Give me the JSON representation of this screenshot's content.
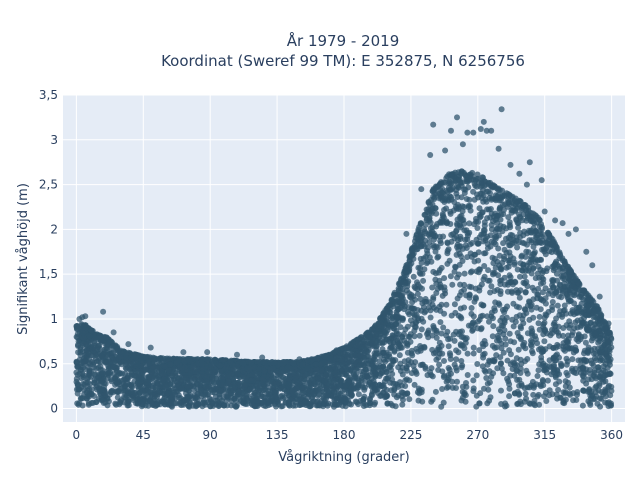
{
  "chart_data": {
    "type": "scatter",
    "title": "År 1979 - 2019",
    "subtitle": "Koordinat (Sweref 99 TM): E 352875, N 6256756",
    "xlabel": "Vågriktning (grader)",
    "ylabel": "Signifikant våghöjd (m)",
    "xlim": [
      -9,
      369
    ],
    "ylim": [
      -0.15,
      3.5
    ],
    "x_ticks": [
      0,
      45,
      90,
      135,
      180,
      225,
      270,
      315,
      360
    ],
    "x_tick_labels": [
      "0",
      "45",
      "90",
      "135",
      "180",
      "225",
      "270",
      "315",
      "360"
    ],
    "y_ticks": [
      0,
      0.5,
      1,
      1.5,
      2,
      2.5,
      3,
      3.5
    ],
    "y_tick_labels": [
      "0",
      "0,5",
      "1",
      "1,5",
      "2",
      "2,5",
      "3",
      "3,5"
    ],
    "grid": true,
    "plot_background": "#e5ecf6",
    "grid_color": "#ffffff",
    "marker_color": "#30566e",
    "marker_opacity": 0.75,
    "point_cloud": {
      "direction_range": [
        0,
        360
      ],
      "height_min": 0.02,
      "upper_envelope": [
        [
          0,
          0.92
        ],
        [
          5,
          0.95
        ],
        [
          10,
          0.88
        ],
        [
          15,
          0.82
        ],
        [
          20,
          0.8
        ],
        [
          30,
          0.65
        ],
        [
          45,
          0.58
        ],
        [
          60,
          0.56
        ],
        [
          90,
          0.55
        ],
        [
          120,
          0.52
        ],
        [
          150,
          0.52
        ],
        [
          170,
          0.6
        ],
        [
          180,
          0.68
        ],
        [
          190,
          0.78
        ],
        [
          200,
          0.9
        ],
        [
          210,
          1.15
        ],
        [
          220,
          1.5
        ],
        [
          230,
          2.0
        ],
        [
          240,
          2.45
        ],
        [
          250,
          2.62
        ],
        [
          260,
          2.65
        ],
        [
          270,
          2.62
        ],
        [
          280,
          2.5
        ],
        [
          290,
          2.4
        ],
        [
          300,
          2.3
        ],
        [
          310,
          2.15
        ],
        [
          320,
          1.9
        ],
        [
          330,
          1.6
        ],
        [
          340,
          1.35
        ],
        [
          350,
          1.15
        ],
        [
          355,
          0.98
        ],
        [
          360,
          0.82
        ]
      ]
    },
    "outliers": [
      {
        "x": 2,
        "y": 1.0
      },
      {
        "x": 4,
        "y": 1.02
      },
      {
        "x": 6,
        "y": 1.03
      },
      {
        "x": 18,
        "y": 1.08
      },
      {
        "x": 25,
        "y": 0.85
      },
      {
        "x": 35,
        "y": 0.72
      },
      {
        "x": 50,
        "y": 0.68
      },
      {
        "x": 72,
        "y": 0.63
      },
      {
        "x": 88,
        "y": 0.63
      },
      {
        "x": 108,
        "y": 0.6
      },
      {
        "x": 125,
        "y": 0.57
      },
      {
        "x": 150,
        "y": 0.55
      },
      {
        "x": 175,
        "y": 0.65
      },
      {
        "x": 205,
        "y": 0.98
      },
      {
        "x": 222,
        "y": 1.95
      },
      {
        "x": 232,
        "y": 2.45
      },
      {
        "x": 238,
        "y": 2.83
      },
      {
        "x": 240,
        "y": 3.17
      },
      {
        "x": 248,
        "y": 2.88
      },
      {
        "x": 252,
        "y": 3.1
      },
      {
        "x": 256,
        "y": 3.25
      },
      {
        "x": 260,
        "y": 2.95
      },
      {
        "x": 263,
        "y": 3.08
      },
      {
        "x": 267,
        "y": 3.08
      },
      {
        "x": 272,
        "y": 3.12
      },
      {
        "x": 274,
        "y": 3.2
      },
      {
        "x": 276,
        "y": 3.1
      },
      {
        "x": 279,
        "y": 3.1
      },
      {
        "x": 284,
        "y": 2.9
      },
      {
        "x": 286,
        "y": 3.34
      },
      {
        "x": 292,
        "y": 2.72
      },
      {
        "x": 298,
        "y": 2.62
      },
      {
        "x": 303,
        "y": 2.5
      },
      {
        "x": 305,
        "y": 2.75
      },
      {
        "x": 313,
        "y": 2.55
      },
      {
        "x": 315,
        "y": 2.2
      },
      {
        "x": 322,
        "y": 2.1
      },
      {
        "x": 327,
        "y": 2.07
      },
      {
        "x": 331,
        "y": 1.95
      },
      {
        "x": 336,
        "y": 2.0
      },
      {
        "x": 343,
        "y": 1.75
      },
      {
        "x": 347,
        "y": 1.6
      },
      {
        "x": 352,
        "y": 1.25
      },
      {
        "x": 358,
        "y": 0.95
      }
    ]
  }
}
